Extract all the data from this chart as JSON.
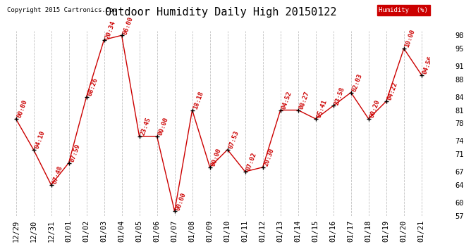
{
  "title": "Outdoor Humidity Daily High 20150122",
  "copyright": "Copyright 2015 Cartronics.com",
  "legend_label": "Humidity  (%)",
  "legend_bg": "#cc0000",
  "legend_fg": "#ffffff",
  "background_color": "#ffffff",
  "grid_color": "#bbbbbb",
  "line_color": "#cc0000",
  "marker_color": "#000000",
  "label_color": "#cc0000",
  "xlabels": [
    "12/29",
    "12/30",
    "12/31",
    "01/01",
    "01/02",
    "01/03",
    "01/04",
    "01/05",
    "01/06",
    "01/07",
    "01/08",
    "01/09",
    "01/10",
    "01/11",
    "01/12",
    "01/13",
    "01/14",
    "01/15",
    "01/16",
    "01/17",
    "01/18",
    "01/19",
    "01/20",
    "01/21"
  ],
  "values": [
    79,
    72,
    64,
    69,
    84,
    97,
    98,
    75,
    75,
    58,
    81,
    68,
    72,
    67,
    68,
    81,
    81,
    79,
    82,
    85,
    79,
    83,
    95,
    89
  ],
  "time_labels": [
    "00:00",
    "04:10",
    "07:48",
    "07:59",
    "08:26",
    "20:34",
    "06:00",
    "23:45",
    "00:00",
    "00:00",
    "18:18",
    "00:00",
    "07:53",
    "07:02",
    "20:30",
    "04:52",
    "08:27",
    "05:41",
    "23:58",
    "02:03",
    "00:20",
    "04:22",
    "10:00",
    "04:56"
  ],
  "ylim": [
    57,
    99
  ],
  "yticks": [
    57,
    60,
    64,
    67,
    71,
    74,
    78,
    81,
    84,
    88,
    91,
    95,
    98
  ],
  "title_fontsize": 11,
  "copyright_fontsize": 6.5,
  "tick_label_fontsize": 7.5,
  "data_label_fontsize": 6.5,
  "label_rotation": 70
}
